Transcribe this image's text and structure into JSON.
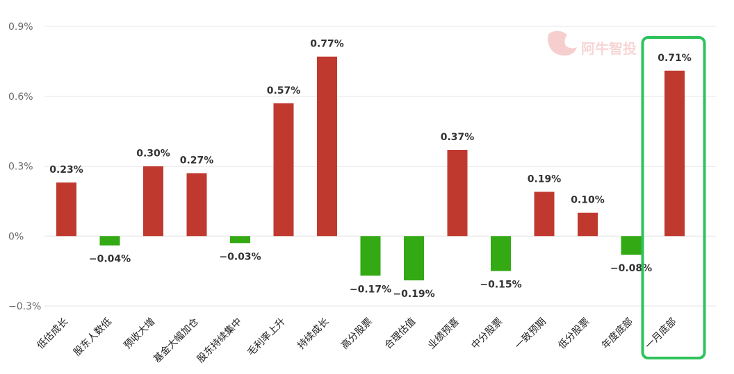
{
  "chart_data": {
    "type": "bar",
    "categories": [
      "低估成长",
      "股东人数低",
      "预收大增",
      "基金大幅加仓",
      "股东持续集中",
      "毛利率上升",
      "持续成长",
      "高分股票",
      "合理估值",
      "业绩预喜",
      "中分股票",
      "一致预期",
      "低分股票",
      "年度底部",
      "一月底部"
    ],
    "values": [
      0.23,
      -0.04,
      0.3,
      0.27,
      -0.03,
      0.57,
      0.77,
      -0.17,
      -0.19,
      0.37,
      -0.15,
      0.19,
      0.1,
      -0.08,
      0.71
    ],
    "value_labels": [
      "0.23%",
      "−0.04%",
      "0.30%",
      "0.27%",
      "−0.03%",
      "0.57%",
      "0.77%",
      "−0.17%",
      "−0.19%",
      "0.37%",
      "−0.15%",
      "0.19%",
      "0.10%",
      "−0.08%",
      "0.71%"
    ],
    "y_ticks": [
      0.9,
      0.6,
      0.3,
      0,
      -0.3
    ],
    "y_tick_labels": [
      "0.9%",
      "0.6%",
      "0.3%",
      "0%",
      "−0.3%"
    ],
    "ylim": [
      -0.3,
      0.9
    ],
    "unit": "%",
    "grid": true,
    "title": "",
    "xlabel": "",
    "ylabel": "",
    "colors": {
      "positive": "#c0392f",
      "negative": "#33a914",
      "highlight_box": "#2fc25b",
      "grid": "#e4e4e4"
    },
    "highlighted_category": "一月底部"
  },
  "watermark": {
    "text": "阿牛智投"
  }
}
